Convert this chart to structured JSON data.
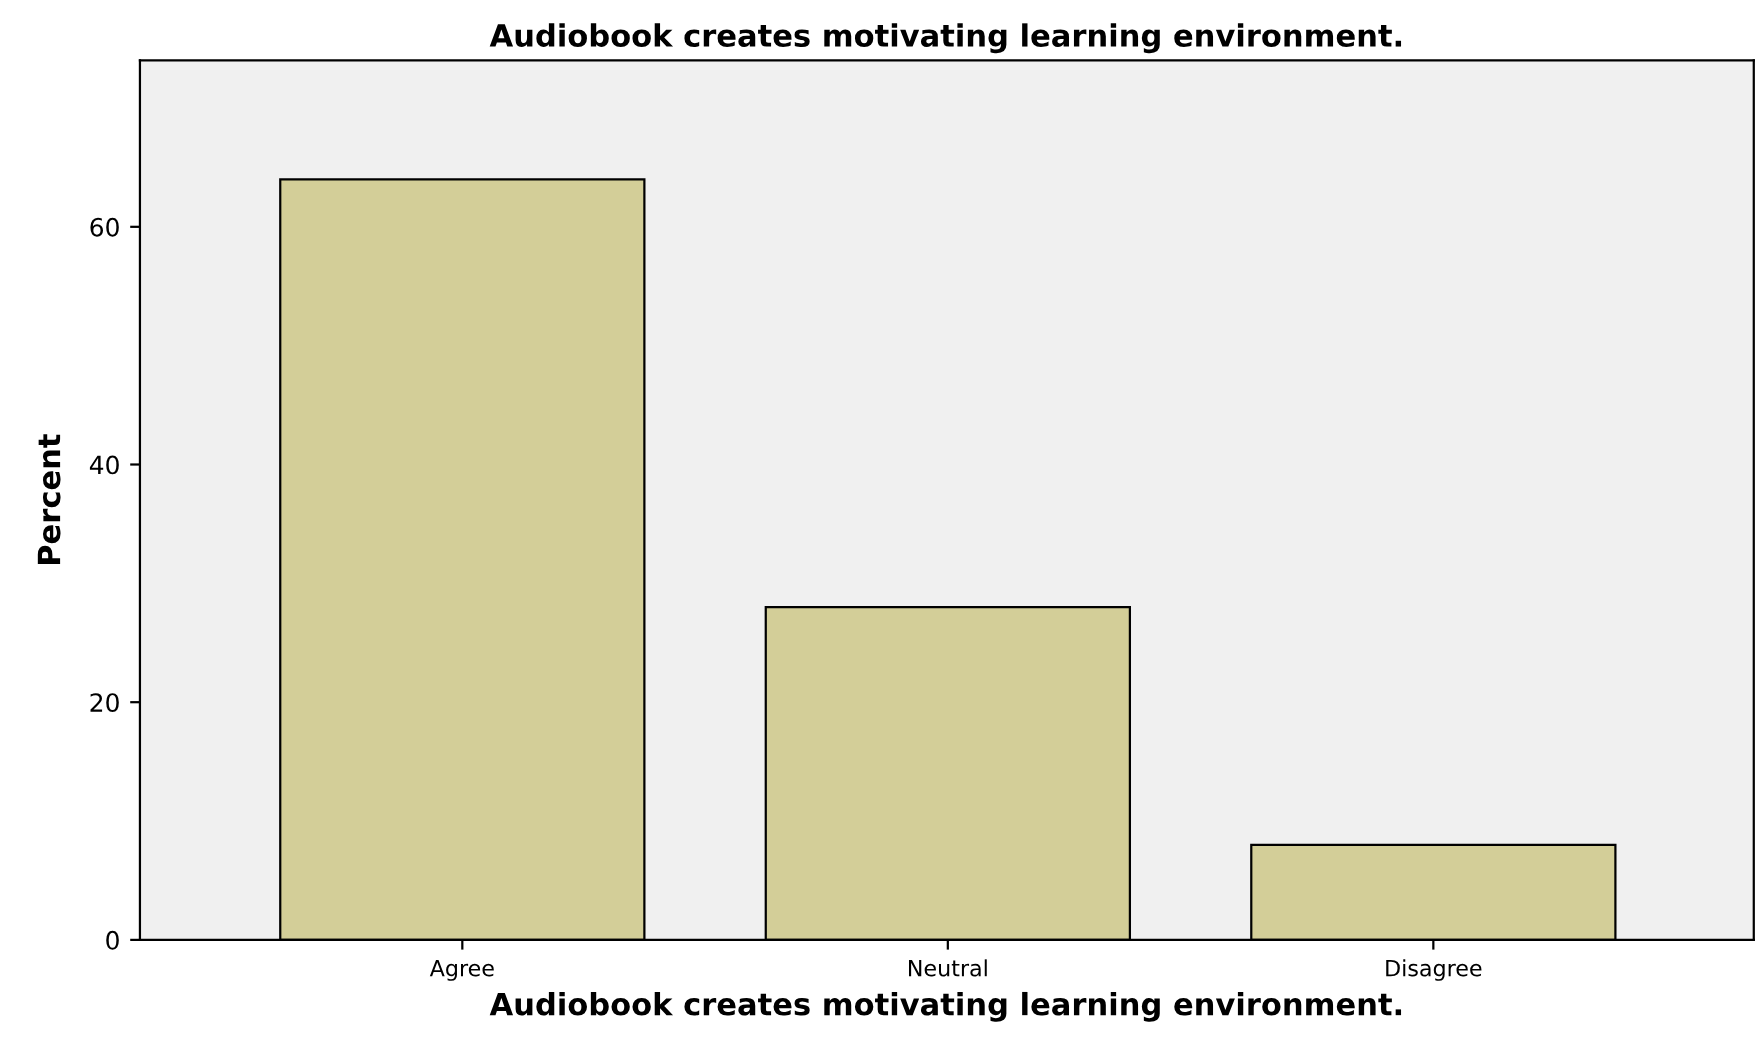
{
  "chart_data": {
    "type": "bar",
    "title": "Audiobook creates motivating learning environment.",
    "xlabel": "Audiobook creates motivating learning environment.",
    "ylabel": "Percent",
    "categories": [
      "Agree",
      "Neutral",
      "Disagree"
    ],
    "values": [
      64,
      28,
      8
    ],
    "color": "#d3ce98",
    "ylim": [
      0,
      74
    ],
    "yticks": [
      0,
      20,
      40,
      60
    ],
    "grid": false
  }
}
